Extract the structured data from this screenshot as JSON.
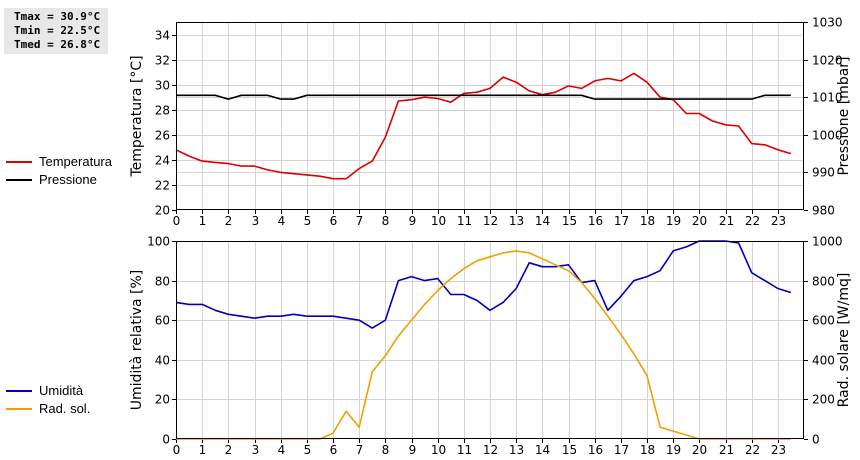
{
  "stats": {
    "tmax": "Tmax = 30.9°C",
    "tmin": "Tmin = 22.5°C",
    "tmed": "Tmed = 26.8°C"
  },
  "colors": {
    "temperature": "#dd0000",
    "pressure": "#000000",
    "humidity": "#0000bb",
    "radiation": "#f0a000"
  },
  "chart_data": [
    {
      "type": "line",
      "grid": true,
      "legend_position": "left",
      "xlim": [
        0,
        24
      ],
      "x_ticks": [
        "0",
        "1",
        "2",
        "3",
        "4",
        "5",
        "6",
        "7",
        "8",
        "9",
        "10",
        "11",
        "12",
        "13",
        "14",
        "15",
        "16",
        "17",
        "18",
        "19",
        "20",
        "21",
        "22",
        "23"
      ],
      "ylabel": "Temperatura [°C]",
      "ylim": [
        20,
        35
      ],
      "y_ticks": [
        "20",
        "22",
        "24",
        "26",
        "28",
        "30",
        "32",
        "34"
      ],
      "y2label": "Pressione [mbar]",
      "y2lim": [
        980,
        1030
      ],
      "y2_ticks": [
        "980",
        "990",
        "1000",
        "1010",
        "1020",
        "1030"
      ],
      "series": [
        {
          "name": "Temperatura",
          "axis": "left",
          "x": [
            0,
            0.5,
            1,
            1.5,
            2,
            2.5,
            3,
            3.5,
            4,
            4.5,
            5,
            5.5,
            6,
            6.5,
            7,
            7.5,
            8,
            8.5,
            9,
            9.5,
            10,
            10.5,
            11,
            11.5,
            12,
            12.5,
            13,
            13.5,
            14,
            14.5,
            15,
            15.5,
            16,
            16.5,
            17,
            17.5,
            18,
            18.5,
            19,
            19.5,
            20,
            20.5,
            21,
            21.5,
            22,
            22.5,
            23,
            23.5
          ],
          "values": [
            24.8,
            24.3,
            23.9,
            23.8,
            23.7,
            23.5,
            23.5,
            23.2,
            23.0,
            22.9,
            22.8,
            22.7,
            22.5,
            22.5,
            23.3,
            23.9,
            25.8,
            28.7,
            28.8,
            29.0,
            28.9,
            28.6,
            29.3,
            29.4,
            29.7,
            30.6,
            30.2,
            29.5,
            29.2,
            29.4,
            29.9,
            29.7,
            30.3,
            30.5,
            30.3,
            30.9,
            30.2,
            29.0,
            28.8,
            27.7,
            27.7,
            27.1,
            26.8,
            26.7,
            25.3,
            25.2,
            24.8,
            24.5
          ]
        },
        {
          "name": "Pressione",
          "axis": "right",
          "x": [
            0,
            1.5,
            2,
            2.5,
            3,
            3.5,
            4,
            4.5,
            5,
            5.5,
            6,
            7,
            8,
            9,
            10,
            11,
            12,
            13,
            14,
            15,
            15.5,
            16,
            17,
            18,
            19,
            20,
            21,
            21.5,
            22,
            22.5,
            23,
            23.5
          ],
          "values": [
            1010.5,
            1010.5,
            1009.5,
            1010.5,
            1010.5,
            1010.5,
            1009.5,
            1009.5,
            1010.5,
            1010.5,
            1010.5,
            1010.5,
            1010.5,
            1010.5,
            1010.5,
            1010.5,
            1010.5,
            1010.5,
            1010.5,
            1010.5,
            1010.5,
            1009.5,
            1009.5,
            1009.5,
            1009.5,
            1009.5,
            1009.5,
            1009.5,
            1009.5,
            1010.5,
            1010.5,
            1010.5
          ]
        }
      ]
    },
    {
      "type": "line",
      "grid": true,
      "legend_position": "left",
      "xlim": [
        0,
        24
      ],
      "x_ticks": [
        "0",
        "1",
        "2",
        "3",
        "4",
        "5",
        "6",
        "7",
        "8",
        "9",
        "10",
        "11",
        "12",
        "13",
        "14",
        "15",
        "16",
        "17",
        "18",
        "19",
        "20",
        "21",
        "22",
        "23"
      ],
      "ylabel": "Umidità relativa [%]",
      "ylim": [
        0,
        100
      ],
      "y_ticks": [
        "0",
        "20",
        "40",
        "60",
        "80",
        "100"
      ],
      "y2label": "Rad. solare [W/mq]",
      "y2lim": [
        0,
        1000
      ],
      "y2_ticks": [
        "0",
        "200",
        "400",
        "600",
        "800",
        "1000"
      ],
      "series": [
        {
          "name": "Umidità",
          "axis": "left",
          "x": [
            0,
            0.5,
            1,
            1.5,
            2,
            2.5,
            3,
            3.5,
            4,
            4.5,
            5,
            5.5,
            6,
            6.5,
            7,
            7.5,
            8,
            8.5,
            9,
            9.5,
            10,
            10.5,
            11,
            11.5,
            12,
            12.5,
            13,
            13.5,
            14,
            14.5,
            15,
            15.5,
            16,
            16.5,
            17,
            17.5,
            18,
            18.5,
            19,
            19.5,
            20,
            20.5,
            21,
            21.5,
            22,
            22.5,
            23,
            23.5
          ],
          "values": [
            69,
            68,
            68,
            65,
            63,
            62,
            61,
            62,
            62,
            63,
            62,
            62,
            62,
            61,
            60,
            56,
            60,
            80,
            82,
            80,
            81,
            73,
            73,
            70,
            65,
            69,
            76,
            89,
            87,
            87,
            88,
            79,
            80,
            65,
            72,
            80,
            82,
            85,
            95,
            97,
            100,
            100,
            100,
            99,
            84,
            80,
            76,
            74
          ]
        },
        {
          "name": "Rad. sol.",
          "axis": "right",
          "x": [
            0,
            0.5,
            1,
            1.5,
            2,
            2.5,
            3,
            3.5,
            4,
            4.5,
            5,
            5.5,
            6,
            6.5,
            7,
            7.5,
            8,
            8.5,
            9,
            9.5,
            10,
            10.5,
            11,
            11.5,
            12,
            12.5,
            13,
            13.5,
            14,
            14.5,
            15,
            15.5,
            16,
            16.5,
            17,
            17.5,
            18,
            18.5,
            19,
            19.5,
            20,
            20.5,
            21,
            21.5,
            22,
            22.5,
            23,
            23.5
          ],
          "values": [
            0,
            0,
            0,
            0,
            0,
            0,
            0,
            0,
            0,
            0,
            0,
            0,
            30,
            140,
            60,
            340,
            420,
            520,
            600,
            680,
            750,
            810,
            860,
            900,
            920,
            940,
            950,
            940,
            910,
            880,
            850,
            790,
            710,
            620,
            530,
            430,
            320,
            60,
            40,
            20,
            0,
            0,
            0,
            0,
            0,
            0,
            0,
            0
          ]
        }
      ]
    }
  ]
}
